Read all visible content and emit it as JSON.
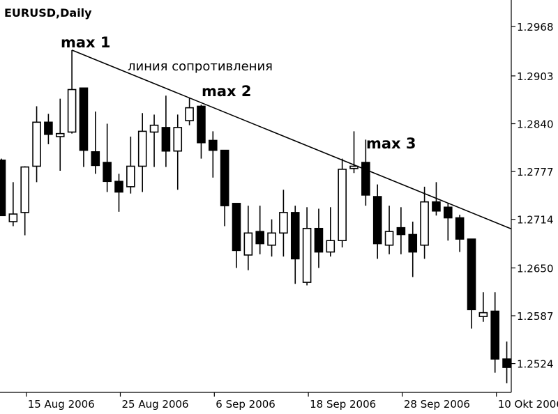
{
  "chart_data": {
    "type": "candlestick",
    "title": "EURUSD,Daily",
    "annotations": [
      "max 1",
      "линия сопротивления",
      "max 2",
      "max 3"
    ],
    "categories": [
      null,
      null,
      "15 Aug 2006",
      null,
      null,
      null,
      null,
      null,
      null,
      null,
      "25 Aug 2006",
      null,
      null,
      null,
      null,
      null,
      null,
      null,
      "6 Sep 2006",
      null,
      null,
      null,
      null,
      null,
      null,
      null,
      "18 Sep 2006",
      null,
      null,
      null,
      null,
      null,
      null,
      null,
      "28 Sep 2006",
      null,
      null,
      null,
      null,
      null,
      null,
      null,
      "10 Okt 2006",
      null
    ],
    "open": [
      1.2792,
      1.2711,
      1.2723,
      1.2784,
      1.2842,
      1.2823,
      1.2829,
      1.2887,
      1.2803,
      1.2789,
      1.2764,
      1.2757,
      1.2784,
      1.2829,
      1.2835,
      1.2804,
      1.2844,
      1.2863,
      1.2818,
      1.2805,
      1.2735,
      1.2667,
      1.2698,
      1.268,
      1.2696,
      1.2723,
      1.2631,
      1.2702,
      1.2671,
      1.2686,
      1.2781,
      1.2789,
      1.2744,
      1.268,
      1.2703,
      1.2694,
      1.268,
      1.2737,
      1.273,
      1.2716,
      1.2688,
      1.2586,
      1.2593,
      1.253
    ],
    "high": [
      1.2794,
      1.2763,
      1.2784,
      1.2863,
      1.2853,
      1.2873,
      1.2937,
      1.2887,
      1.2856,
      1.284,
      1.2774,
      1.2823,
      1.2854,
      1.2852,
      1.2877,
      1.2852,
      1.2874,
      1.2865,
      1.283,
      1.2805,
      1.2735,
      1.2732,
      1.2732,
      1.2714,
      1.2753,
      1.2732,
      1.273,
      1.2728,
      1.273,
      1.2794,
      1.283,
      1.2819,
      1.276,
      1.2732,
      1.273,
      1.2711,
      1.2757,
      1.2763,
      1.2735,
      1.272,
      1.2688,
      1.2618,
      1.2618,
      1.2553
    ],
    "low": [
      1.2719,
      1.2705,
      1.2693,
      1.2763,
      1.2813,
      1.2778,
      1.2827,
      1.2783,
      1.2774,
      1.275,
      1.2724,
      1.2748,
      1.275,
      1.2783,
      1.2783,
      1.2753,
      1.2838,
      1.2794,
      1.2769,
      1.2705,
      1.265,
      1.2647,
      1.2668,
      1.2665,
      1.2665,
      1.2629,
      1.2627,
      1.265,
      1.2665,
      1.2677,
      1.2775,
      1.2732,
      1.2662,
      1.2668,
      1.2668,
      1.2638,
      1.2662,
      1.2719,
      1.2686,
      1.2671,
      1.257,
      1.2579,
      1.2512,
      1.2498
    ],
    "close": [
      1.2719,
      1.2721,
      1.2783,
      1.2842,
      1.2826,
      1.2827,
      1.2885,
      1.2805,
      1.2785,
      1.2764,
      1.275,
      1.2784,
      1.283,
      1.2838,
      1.2804,
      1.2835,
      1.2861,
      1.2815,
      1.2805,
      1.2732,
      1.2673,
      1.2696,
      1.2682,
      1.2696,
      1.2723,
      1.2662,
      1.2702,
      1.2671,
      1.2686,
      1.278,
      1.2784,
      1.2746,
      1.2682,
      1.2698,
      1.2694,
      1.2671,
      1.2737,
      1.2725,
      1.2716,
      1.2688,
      1.2595,
      1.2591,
      1.253,
      1.2519
    ],
    "up_color": "#ffffff",
    "down_color": "#000000",
    "ylim": [
      1.2486,
      1.3003
    ],
    "yticks": [
      1.2968,
      1.2903,
      {
        "value": 1.284,
        "label": "1.2840"
      },
      1.2777,
      1.2714,
      {
        "value": 1.265,
        "label": "1.2650"
      },
      1.2587,
      1.2524
    ]
  }
}
